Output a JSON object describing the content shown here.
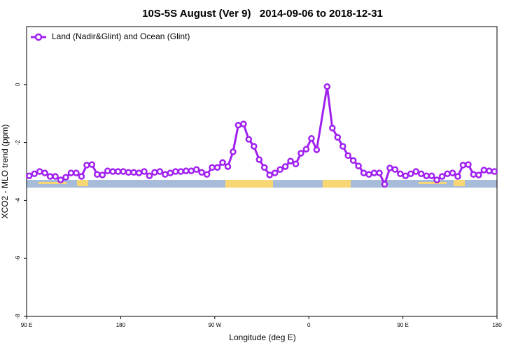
{
  "chart_data": {
    "type": "line",
    "title": "10S-5S August (Ver 9)   2014-09-06 to 2018-12-31",
    "x_label": "Longitude (deg E)",
    "y_label": "XCO2 - MLO trend (ppm)",
    "x": [
      92.5,
      97.5,
      102.5,
      107.5,
      112.5,
      117.5,
      122.5,
      127.5,
      132.5,
      137.5,
      142.5,
      147.5,
      152.5,
      157.5,
      162.5,
      167.5,
      172.5,
      177.5,
      182.5,
      187.5,
      192.5,
      197.5,
      202.5,
      207.5,
      212.5,
      217.5,
      222.5,
      227.5,
      232.5,
      237.5,
      242.5,
      247.5,
      252.5,
      257.5,
      262.5,
      267.5,
      272.5,
      277.5,
      282.5,
      287.5,
      292.5,
      297.5,
      302.5,
      307.5,
      312.5,
      317.5,
      322.5,
      327.5,
      332.5,
      337.5,
      342.5,
      347.5,
      352.5,
      357.5,
      362.5,
      367.5,
      377.5,
      382.5,
      387.5,
      392.5,
      397.5,
      402.5,
      407.5,
      412.5,
      417.5,
      422.5,
      427.5,
      432.5,
      437.5,
      442.5,
      447.5,
      452.5,
      457.5,
      462.5,
      467.5,
      472.5,
      477.5,
      482.5,
      487.5,
      492.5,
      497.5,
      502.5,
      507.5,
      512.5,
      517.5,
      522.5,
      527.5,
      532.5,
      537.5
    ],
    "series": [
      {
        "name": "Land (Nadir&Glint) and Ocean (Glint)",
        "color": "#a020f0",
        "values": [
          -3.15,
          -3.08,
          -3.0,
          -3.05,
          -3.17,
          -3.17,
          -3.29,
          -3.2,
          -3.05,
          -3.05,
          -3.17,
          -2.78,
          -2.76,
          -3.1,
          -3.12,
          -2.98,
          -3.0,
          -3.0,
          -3.0,
          -3.03,
          -3.03,
          -3.05,
          -3.0,
          -3.15,
          -3.03,
          -3.0,
          -3.1,
          -3.05,
          -3.0,
          -3.0,
          -2.98,
          -2.98,
          -2.93,
          -3.03,
          -3.1,
          -2.86,
          -2.86,
          -2.69,
          -2.83,
          -2.32,
          -1.4,
          -1.36,
          -1.89,
          -2.13,
          -2.59,
          -2.86,
          -3.12,
          -3.05,
          -2.93,
          -2.83,
          -2.64,
          -2.74,
          -2.37,
          -2.23,
          -1.86,
          -2.25,
          -0.07,
          -1.5,
          -1.82,
          -2.13,
          -2.45,
          -2.62,
          -2.81,
          -3.05,
          -3.1,
          -3.05,
          -3.05,
          -3.44,
          -2.88,
          -2.93,
          -3.08,
          -3.15,
          -3.08,
          -3.0,
          -3.08,
          -3.15,
          -3.15,
          -3.29,
          -3.17,
          -3.08,
          -3.05,
          -3.17,
          -2.78,
          -2.76,
          -3.1,
          -3.12,
          -2.95,
          -2.98,
          -3.0
        ]
      }
    ],
    "xlim": [
      90,
      540
    ],
    "ylim": [
      -8,
      2
    ],
    "xticks": [
      {
        "value": 90,
        "label": "90 E"
      },
      {
        "value": 180,
        "label": "180"
      },
      {
        "value": 270,
        "label": "90 W"
      },
      {
        "value": 360,
        "label": "0"
      },
      {
        "value": 450,
        "label": "90 E"
      },
      {
        "value": 540,
        "label": "180"
      }
    ],
    "yticks": [
      0,
      -2,
      -4,
      -6,
      -8
    ],
    "legend": "top-left"
  }
}
